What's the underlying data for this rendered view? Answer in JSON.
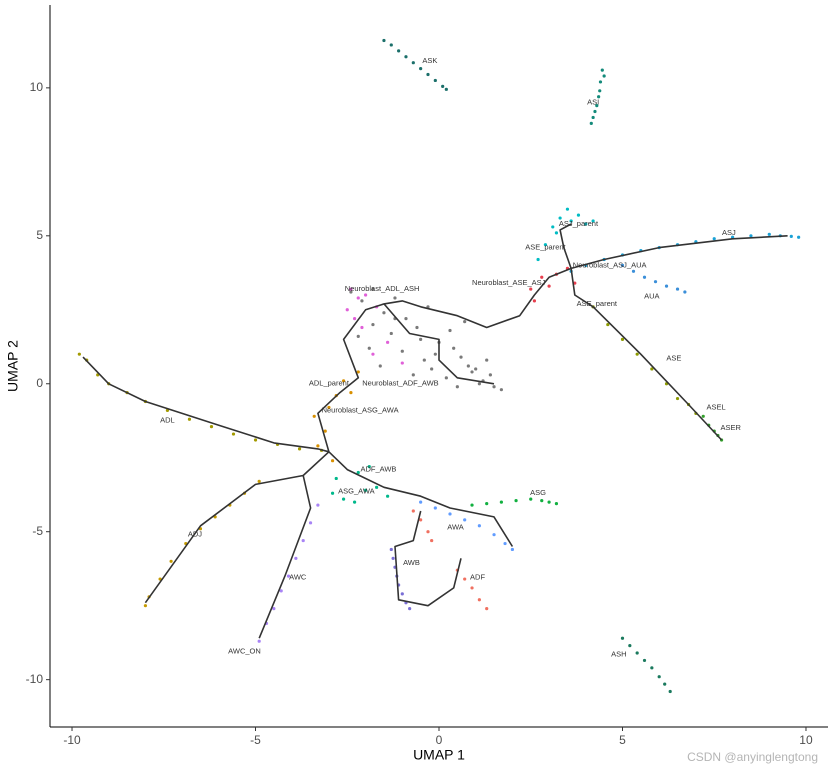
{
  "chart_data": {
    "type": "scatter",
    "x_label": "UMAP 1",
    "y_label": "UMAP 2",
    "xlim": [
      -10.6,
      10.6
    ],
    "ylim": [
      -11.6,
      12.8
    ],
    "xticks": [
      -10,
      -5,
      0,
      5,
      10
    ],
    "yticks": [
      -10,
      -5,
      0,
      5,
      10
    ],
    "watermark": "CSDN @anyinglengtong",
    "series": [
      {
        "color": "#1b6f6a",
        "x": [
          -1.5,
          -1.3,
          -1.1,
          -0.9,
          -0.7,
          -0.5,
          -0.3,
          -0.1,
          0.1,
          0.2
        ],
        "y": [
          11.6,
          11.45,
          11.25,
          11.05,
          10.85,
          10.65,
          10.45,
          10.25,
          10.05,
          9.95
        ]
      },
      {
        "color": "#138a7a",
        "x": [
          4.45,
          4.5,
          4.4,
          4.38,
          4.35,
          4.3,
          4.25,
          4.2,
          4.15
        ],
        "y": [
          10.6,
          10.4,
          10.2,
          9.9,
          9.7,
          9.4,
          9.2,
          9.0,
          8.8
        ]
      },
      {
        "color": "#1b7a5e",
        "x": [
          5.0,
          5.2,
          5.4,
          5.6,
          5.8,
          6.0,
          6.15,
          6.3
        ],
        "y": [
          -8.6,
          -8.85,
          -9.1,
          -9.35,
          -9.6,
          -9.9,
          -10.15,
          -10.4
        ]
      },
      {
        "color": "#1aa1d6",
        "x": [
          3.6,
          4.0,
          4.5,
          5.0,
          5.5,
          6.0,
          6.5,
          7.0,
          7.5,
          8.0,
          8.5,
          9.0,
          9.3,
          9.6,
          9.8
        ],
        "y": [
          3.8,
          4.0,
          4.2,
          4.35,
          4.5,
          4.6,
          4.7,
          4.8,
          4.9,
          4.95,
          5.0,
          5.05,
          5.0,
          4.98,
          4.95
        ]
      },
      {
        "color": "#3b8fd9",
        "x": [
          5.0,
          5.3,
          5.6,
          5.9,
          6.2,
          6.5,
          6.7
        ],
        "y": [
          4.0,
          3.8,
          3.6,
          3.45,
          3.3,
          3.2,
          3.1
        ]
      },
      {
        "color": "#00bcc4",
        "x": [
          3.3,
          3.6,
          4.0,
          3.2,
          2.9,
          2.7,
          3.8,
          3.5,
          3.1,
          4.2
        ],
        "y": [
          5.6,
          5.5,
          5.4,
          5.1,
          4.7,
          4.2,
          5.7,
          5.9,
          5.3,
          5.5
        ]
      },
      {
        "color": "#e8404f",
        "x": [
          2.5,
          2.8,
          3.2,
          3.5,
          3.7,
          3.0,
          2.6
        ],
        "y": [
          3.2,
          3.6,
          3.7,
          3.9,
          3.4,
          3.3,
          2.8
        ]
      },
      {
        "color": "#8c9a00",
        "x": [
          4.2,
          4.6,
          5.0,
          5.4,
          5.8,
          6.2,
          6.5,
          6.8,
          7.0
        ],
        "y": [
          2.6,
          2.0,
          1.5,
          1.0,
          0.5,
          0.0,
          -0.5,
          -0.7,
          -1.0
        ]
      },
      {
        "color": "#34a02c",
        "x": [
          7.2,
          7.35,
          7.5,
          7.6,
          7.7
        ],
        "y": [
          -1.1,
          -1.4,
          -1.6,
          -1.75,
          -1.9
        ]
      },
      {
        "color": "#7a7a7a",
        "x": [
          -2.4,
          -2.1,
          -1.8,
          -1.5,
          -1.2,
          -0.9,
          -0.6,
          -0.3,
          0.0,
          0.3,
          0.6,
          0.9,
          1.2,
          1.5,
          -2.2,
          -1.9,
          -1.6,
          -1.3,
          -1.0,
          -0.7,
          -0.4,
          -0.1,
          0.2,
          0.5,
          0.8,
          1.1,
          1.4,
          1.7,
          -1.2,
          -0.5,
          0.4,
          1.0,
          -1.8,
          -0.2,
          0.7,
          1.3
        ],
        "y": [
          3.1,
          2.8,
          3.2,
          2.4,
          2.9,
          2.2,
          1.9,
          2.6,
          1.4,
          1.8,
          0.9,
          0.4,
          0.1,
          -0.1,
          1.6,
          1.2,
          0.6,
          1.7,
          1.1,
          0.3,
          0.8,
          1.0,
          0.2,
          -0.1,
          0.6,
          0.0,
          0.3,
          -0.2,
          2.2,
          1.5,
          1.2,
          0.5,
          2.0,
          0.5,
          2.1,
          0.8
        ]
      },
      {
        "color": "#e060d8",
        "x": [
          -2.4,
          -2.2,
          -2.0,
          -1.7,
          -2.5,
          -1.4,
          -1.0,
          -2.1,
          -1.8,
          -2.3
        ],
        "y": [
          3.2,
          2.9,
          3.0,
          2.6,
          2.5,
          1.4,
          0.7,
          1.9,
          1.0,
          2.2
        ]
      },
      {
        "color": "#a39a00",
        "x": [
          -9.8,
          -9.6,
          -9.3,
          -9.0,
          -8.5,
          -8.0,
          -7.4,
          -6.8,
          -6.2,
          -5.6,
          -5.0,
          -4.4,
          -3.8,
          -3.2
        ],
        "y": [
          1.0,
          0.8,
          0.3,
          0.0,
          -0.3,
          -0.6,
          -0.9,
          -1.2,
          -1.45,
          -1.7,
          -1.9,
          -2.05,
          -2.2,
          -2.25
        ]
      },
      {
        "color": "#d89000",
        "x": [
          -3.0,
          -2.8,
          -3.1,
          -2.6,
          -2.4,
          -3.3,
          -2.9,
          -2.2,
          -3.4
        ],
        "y": [
          -0.8,
          -0.4,
          -1.6,
          0.1,
          -0.3,
          -2.1,
          -2.6,
          0.4,
          -1.1
        ]
      },
      {
        "color": "#f07060",
        "x": [
          -0.7,
          -0.5,
          -0.3,
          -0.2,
          0.5,
          0.7,
          0.9,
          1.1,
          1.3
        ],
        "y": [
          -4.3,
          -4.6,
          -5.0,
          -5.3,
          -6.3,
          -6.6,
          -6.9,
          -7.3,
          -7.6
        ]
      },
      {
        "color": "#7a6fd6",
        "x": [
          -1.3,
          -1.25,
          -1.2,
          -1.15,
          -1.1,
          -1.0,
          -0.9,
          -0.8
        ],
        "y": [
          -5.6,
          -5.9,
          -6.2,
          -6.5,
          -6.8,
          -7.1,
          -7.4,
          -7.6
        ]
      },
      {
        "color": "#a884f5",
        "x": [
          -3.3,
          -3.5,
          -3.7,
          -3.9,
          -4.1,
          -4.3,
          -4.5,
          -4.7,
          -4.9
        ],
        "y": [
          -4.1,
          -4.7,
          -5.3,
          -5.9,
          -6.5,
          -7.0,
          -7.6,
          -8.1,
          -8.7
        ]
      },
      {
        "color": "#c59a00",
        "x": [
          -4.9,
          -5.3,
          -5.7,
          -6.1,
          -6.5,
          -6.9,
          -7.3,
          -7.6,
          -7.9,
          -8.0
        ],
        "y": [
          -3.3,
          -3.7,
          -4.1,
          -4.5,
          -4.9,
          -5.4,
          -6.0,
          -6.6,
          -7.2,
          -7.5
        ]
      },
      {
        "color": "#619cff",
        "x": [
          -0.5,
          -0.1,
          0.3,
          0.7,
          1.1,
          1.5,
          1.8,
          2.0
        ],
        "y": [
          -4.0,
          -4.2,
          -4.4,
          -4.6,
          -4.8,
          -5.1,
          -5.4,
          -5.6
        ]
      },
      {
        "color": "#12b040",
        "x": [
          0.9,
          1.3,
          1.7,
          2.1,
          2.5,
          2.8,
          3.0,
          3.2
        ],
        "y": [
          -4.1,
          -4.05,
          -4.0,
          -3.95,
          -3.9,
          -3.95,
          -4.0,
          -4.05
        ]
      },
      {
        "color": "#00b88b",
        "x": [
          -2.9,
          -2.6,
          -2.3,
          -2.0,
          -1.7,
          -1.4,
          -2.8,
          -2.2,
          -1.9
        ],
        "y": [
          -3.7,
          -3.9,
          -4.0,
          -3.6,
          -3.5,
          -3.8,
          -3.2,
          -3.0,
          -2.8
        ]
      }
    ],
    "trajectory": {
      "color": "#333333",
      "x": [
        -9.7,
        -9.0,
        -8.0,
        -6.0,
        -4.5,
        -3.3,
        -3.0,
        null,
        -3.0,
        -3.3,
        -2.7,
        -2.2,
        -2.6,
        -2.0,
        -1.5,
        -1.0,
        -0.5,
        0.5,
        1.3,
        2.2,
        2.6,
        3.0,
        3.6,
        4.5,
        6.0,
        8.0,
        9.5,
        null,
        3.6,
        3.7,
        4.2,
        5.5,
        6.8,
        7.7,
        null,
        3.6,
        3.4,
        3.3,
        3.6,
        null,
        -1.5,
        -0.8,
        0.0,
        0.0,
        0.5,
        1.5,
        null,
        -3.0,
        -3.7,
        -5.0,
        -6.5,
        -8.0,
        null,
        -3.7,
        -3.5,
        -4.2,
        -4.9,
        null,
        -3.0,
        -2.5,
        -1.5,
        -0.5,
        0.3,
        1.5,
        2.0,
        null,
        -0.5,
        -0.7,
        -1.2,
        -1.1,
        -0.3,
        0.4,
        0.6
      ],
      "y": [
        0.9,
        0.0,
        -0.6,
        -1.4,
        -2.0,
        -2.2,
        -2.3,
        null,
        -2.3,
        -1.0,
        -0.3,
        0.2,
        1.5,
        2.5,
        2.7,
        2.8,
        2.6,
        2.3,
        1.9,
        2.3,
        3.0,
        3.6,
        3.9,
        4.2,
        4.6,
        4.9,
        5.0,
        null,
        3.9,
        3.0,
        2.6,
        1.0,
        -0.7,
        -1.9,
        null,
        3.9,
        4.6,
        5.2,
        5.4,
        null,
        2.7,
        1.7,
        1.5,
        0.8,
        0.2,
        0.0,
        null,
        -2.3,
        -3.1,
        -3.4,
        -4.8,
        -7.4,
        null,
        -3.1,
        -4.2,
        -6.5,
        -8.6,
        null,
        -2.3,
        -2.9,
        -3.5,
        -3.8,
        -4.2,
        -4.5,
        -5.5,
        null,
        -4.3,
        -5.3,
        -5.5,
        -7.3,
        -7.5,
        -6.9,
        -5.9
      ]
    },
    "annotations": [
      {
        "text": "ASK",
        "x": -0.25,
        "y": 10.9
      },
      {
        "text": "ASI",
        "x": 4.2,
        "y": 9.5
      },
      {
        "text": "ASJ",
        "x": 7.9,
        "y": 5.1
      },
      {
        "text": "ASJ_parent",
        "x": 3.8,
        "y": 5.4
      },
      {
        "text": "ASE_parent",
        "x": 2.9,
        "y": 4.6
      },
      {
        "text": "Neuroblast_ASE_ASJ",
        "x": 1.9,
        "y": 3.4
      },
      {
        "text": "Neuroblast_ASJ_AUA",
        "x": 4.65,
        "y": 4.0
      },
      {
        "text": "ASE_parent",
        "x": 4.3,
        "y": 2.7
      },
      {
        "text": "AUA",
        "x": 5.8,
        "y": 2.95
      },
      {
        "text": "ASE",
        "x": 6.4,
        "y": 0.85
      },
      {
        "text": "ASEL",
        "x": 7.55,
        "y": -0.8
      },
      {
        "text": "ASER",
        "x": 7.95,
        "y": -1.5
      },
      {
        "text": "Neuroblast_ADL_ASH",
        "x": -1.55,
        "y": 3.2
      },
      {
        "text": "ADL_parent",
        "x": -3.0,
        "y": 0.0
      },
      {
        "text": "Neuroblast_ADF_AWB",
        "x": -1.05,
        "y": 0.0
      },
      {
        "text": "Neuroblast_ASG_AWA",
        "x": -2.15,
        "y": -0.9
      },
      {
        "text": "ADL",
        "x": -7.4,
        "y": -1.25
      },
      {
        "text": "ADF_AWB",
        "x": -1.65,
        "y": -2.9
      },
      {
        "text": "ASG_AWA",
        "x": -2.25,
        "y": -3.65
      },
      {
        "text": "ASG",
        "x": 2.7,
        "y": -3.7
      },
      {
        "text": "AWA",
        "x": 0.45,
        "y": -4.85
      },
      {
        "text": "ADJ",
        "x": -6.65,
        "y": -5.1
      },
      {
        "text": "AWB",
        "x": -0.75,
        "y": -6.05
      },
      {
        "text": "ADF",
        "x": 1.05,
        "y": -6.55
      },
      {
        "text": "AWC",
        "x": -3.85,
        "y": -6.55
      },
      {
        "text": "AWC_ON",
        "x": -5.3,
        "y": -9.05
      },
      {
        "text": "ASH",
        "x": 4.9,
        "y": -9.15
      }
    ]
  }
}
